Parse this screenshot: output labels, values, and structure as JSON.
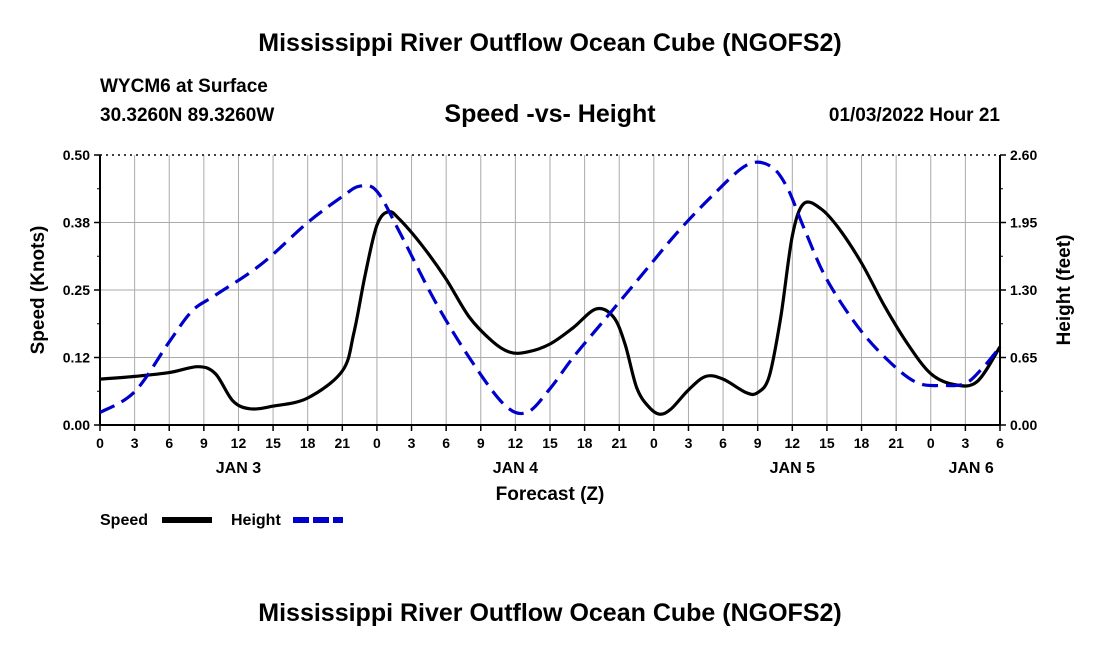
{
  "main_title": "Mississippi River Outflow Ocean Cube (NGOFS2)",
  "footer_title": "Mississippi River Outflow Ocean Cube (NGOFS2)",
  "station": "WYCM6 at Surface",
  "coords": "30.3260N  89.3260W",
  "datetime": "01/03/2022 Hour 21",
  "legend": {
    "speed_label": "Speed",
    "height_label": "Height"
  },
  "colors": {
    "speed": "#000000",
    "height": "#0000cc",
    "grid": "#aaaaaa"
  },
  "chart_data": {
    "type": "line",
    "title": "Speed -vs- Height",
    "xlabel": "Forecast (Z)",
    "ylabel": "Speed (Knots)",
    "y2label": "Height (feet)",
    "xlim": [
      0,
      78
    ],
    "ylim": [
      0,
      0.5
    ],
    "y2lim": [
      0,
      2.6
    ],
    "yticks": [
      0,
      0.125,
      0.25,
      0.375,
      0.5
    ],
    "yticklabels": [
      "0.00",
      "0.12",
      "0.25",
      "0.38",
      "0.50"
    ],
    "y2ticks": [
      0,
      0.65,
      1.3,
      1.95,
      2.6
    ],
    "y2ticklabels": [
      "0.00",
      "0.65",
      "1.30",
      "1.95",
      "2.60"
    ],
    "xticks": [
      0,
      3,
      6,
      9,
      12,
      15,
      18,
      21,
      24,
      27,
      30,
      33,
      36,
      39,
      42,
      45,
      48,
      51,
      54,
      57,
      60,
      63,
      66,
      69,
      72,
      75,
      78
    ],
    "xticklabels": [
      "0",
      "3",
      "6",
      "9",
      "12",
      "15",
      "18",
      "21",
      "0",
      "3",
      "6",
      "9",
      "12",
      "15",
      "18",
      "21",
      "0",
      "3",
      "6",
      "9",
      "12",
      "15",
      "18",
      "21",
      "0",
      "3",
      "6"
    ],
    "day_labels": [
      {
        "x": 12,
        "label": "JAN 3"
      },
      {
        "x": 36,
        "label": "JAN 4"
      },
      {
        "x": 60,
        "label": "JAN 5"
      },
      {
        "x": 75.5,
        "label": "JAN 6"
      }
    ],
    "series": [
      {
        "name": "Speed",
        "axis": "left",
        "style": "solid",
        "x": [
          0,
          3,
          6,
          8.5,
          10,
          11.5,
          13,
          15,
          18,
          21,
          22,
          23,
          24,
          25,
          26,
          28,
          30,
          32,
          34,
          35.5,
          37,
          39,
          41,
          43,
          44.5,
          45.5,
          46.5,
          47.5,
          48.5,
          49.5,
          51,
          52.5,
          54,
          56,
          57,
          58,
          59,
          60,
          61,
          62.5,
          64,
          66,
          68,
          70,
          72,
          74,
          76,
          78
        ],
        "y": [
          0.085,
          0.09,
          0.097,
          0.108,
          0.095,
          0.045,
          0.03,
          0.035,
          0.05,
          0.1,
          0.17,
          0.28,
          0.37,
          0.395,
          0.38,
          0.33,
          0.27,
          0.2,
          0.155,
          0.135,
          0.135,
          0.15,
          0.18,
          0.215,
          0.2,
          0.15,
          0.07,
          0.035,
          0.02,
          0.03,
          0.065,
          0.09,
          0.085,
          0.06,
          0.06,
          0.09,
          0.2,
          0.35,
          0.41,
          0.4,
          0.365,
          0.3,
          0.22,
          0.15,
          0.095,
          0.075,
          0.08,
          0.145
        ]
      },
      {
        "name": "Height",
        "axis": "right",
        "style": "dashed",
        "x": [
          0,
          3,
          6,
          8,
          10,
          14,
          18,
          21,
          22.5,
          24,
          26,
          29,
          32,
          35,
          37,
          39,
          41,
          44,
          47,
          50,
          53,
          56,
          58,
          59.5,
          61,
          63,
          66,
          69,
          71,
          73,
          75,
          76.5,
          78
        ],
        "y": [
          0.12,
          0.32,
          0.8,
          1.1,
          1.25,
          1.55,
          1.95,
          2.2,
          2.3,
          2.25,
          1.85,
          1.2,
          0.65,
          0.2,
          0.12,
          0.35,
          0.65,
          1.05,
          1.45,
          1.85,
          2.2,
          2.5,
          2.5,
          2.3,
          1.9,
          1.4,
          0.9,
          0.55,
          0.4,
          0.38,
          0.4,
          0.55,
          0.75
        ]
      }
    ]
  }
}
